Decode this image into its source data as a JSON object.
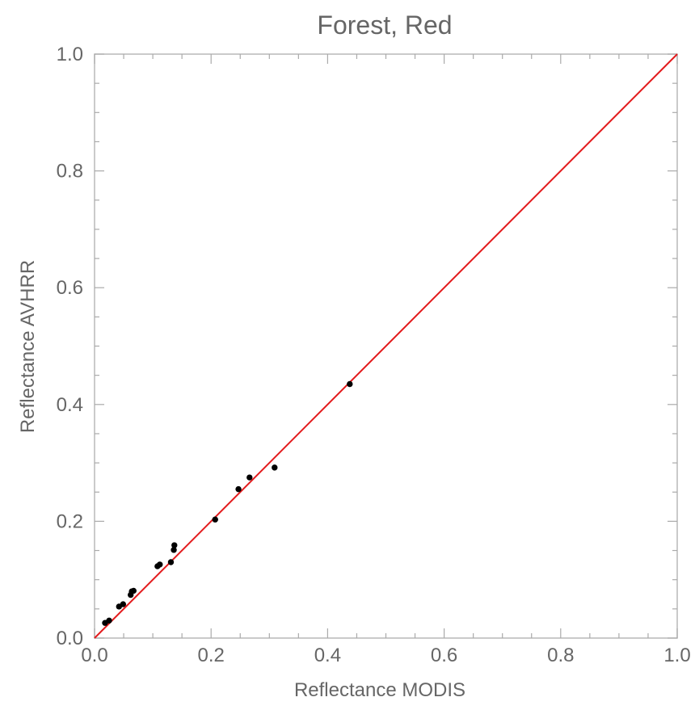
{
  "chart_data": {
    "type": "scatter",
    "title": "Forest, Red",
    "xlabel": "Reflectance  MODIS",
    "ylabel": "Reflectance AVHRR",
    "xlim": [
      0.0,
      1.0
    ],
    "ylim": [
      0.0,
      1.0
    ],
    "x_ticks": [
      "0.0",
      "0.2",
      "0.4",
      "0.6",
      "0.8",
      "1.0"
    ],
    "y_ticks": [
      "0.0",
      "0.2",
      "0.4",
      "0.6",
      "0.8",
      "1.0"
    ],
    "grid": false,
    "series": [
      {
        "points": [
          {
            "x": 0.018,
            "y": 0.026
          },
          {
            "x": 0.025,
            "y": 0.03
          },
          {
            "x": 0.042,
            "y": 0.054
          },
          {
            "x": 0.049,
            "y": 0.058
          },
          {
            "x": 0.062,
            "y": 0.074
          },
          {
            "x": 0.064,
            "y": 0.08
          },
          {
            "x": 0.067,
            "y": 0.081
          },
          {
            "x": 0.108,
            "y": 0.123
          },
          {
            "x": 0.112,
            "y": 0.126
          },
          {
            "x": 0.131,
            "y": 0.13
          },
          {
            "x": 0.136,
            "y": 0.151
          },
          {
            "x": 0.137,
            "y": 0.159
          },
          {
            "x": 0.207,
            "y": 0.203
          },
          {
            "x": 0.247,
            "y": 0.255
          },
          {
            "x": 0.266,
            "y": 0.275
          },
          {
            "x": 0.309,
            "y": 0.292
          },
          {
            "x": 0.438,
            "y": 0.435
          }
        ],
        "color": "#000000"
      }
    ],
    "reference_line": {
      "x": [
        0.0,
        1.0
      ],
      "y": [
        0.0,
        1.0
      ],
      "color": "#e31a1c"
    }
  }
}
